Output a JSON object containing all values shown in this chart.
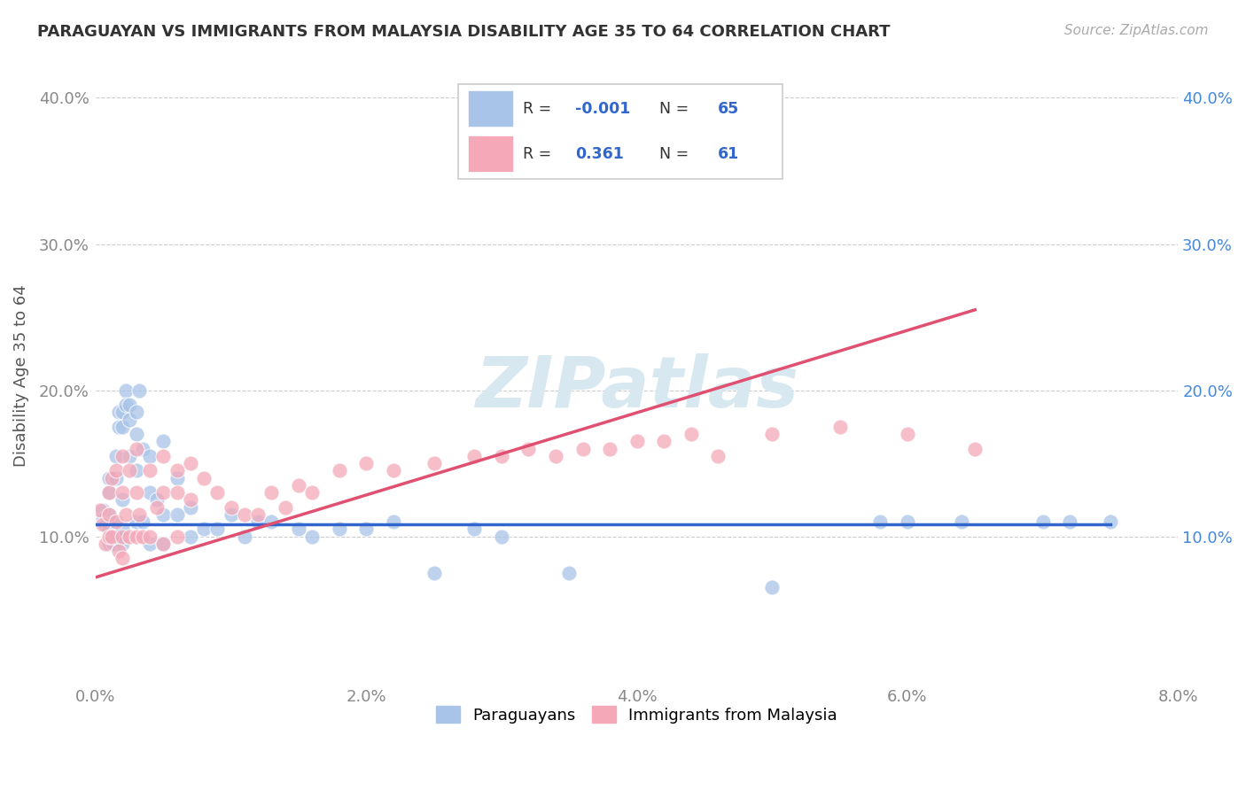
{
  "title": "PARAGUAYAN VS IMMIGRANTS FROM MALAYSIA DISABILITY AGE 35 TO 64 CORRELATION CHART",
  "source": "Source: ZipAtlas.com",
  "ylabel": "Disability Age 35 to 64",
  "blue_color": "#a8c4e8",
  "pink_color": "#f4a8b8",
  "blue_line_color": "#3366cc",
  "pink_line_color": "#e05070",
  "watermark_text": "ZIPatlas",
  "xlim": [
    0.0,
    0.08
  ],
  "ylim": [
    0.0,
    0.42
  ],
  "x_ticks": [
    0.0,
    0.02,
    0.04,
    0.06,
    0.08
  ],
  "x_tick_labels": [
    "0.0%",
    "2.0%",
    "4.0%",
    "6.0%",
    "8.0%"
  ],
  "y_ticks": [
    0.0,
    0.1,
    0.2,
    0.3,
    0.4
  ],
  "y_tick_labels_left": [
    "",
    "10.0%",
    "20.0%",
    "30.0%",
    "40.0%"
  ],
  "y_tick_labels_right": [
    "",
    "10.0%",
    "20.0%",
    "30.0%",
    "40.0%"
  ],
  "legend_r1": "-0.001",
  "legend_n1": "65",
  "legend_r2": "0.361",
  "legend_n2": "61",
  "paraguayan_x": [
    0.0005,
    0.0005,
    0.0007,
    0.001,
    0.001,
    0.001,
    0.001,
    0.001,
    0.0013,
    0.0013,
    0.0015,
    0.0015,
    0.0015,
    0.0017,
    0.0017,
    0.002,
    0.002,
    0.002,
    0.002,
    0.002,
    0.0022,
    0.0022,
    0.0025,
    0.0025,
    0.0025,
    0.003,
    0.003,
    0.003,
    0.003,
    0.0032,
    0.0035,
    0.0035,
    0.004,
    0.004,
    0.004,
    0.0045,
    0.005,
    0.005,
    0.005,
    0.006,
    0.006,
    0.007,
    0.007,
    0.008,
    0.009,
    0.01,
    0.011,
    0.012,
    0.013,
    0.015,
    0.016,
    0.018,
    0.02,
    0.022,
    0.025,
    0.028,
    0.03,
    0.035,
    0.05,
    0.058,
    0.06,
    0.064,
    0.07,
    0.072,
    0.075
  ],
  "paraguayan_y": [
    0.118,
    0.112,
    0.108,
    0.14,
    0.13,
    0.115,
    0.105,
    0.095,
    0.11,
    0.095,
    0.155,
    0.14,
    0.1,
    0.185,
    0.175,
    0.185,
    0.175,
    0.125,
    0.105,
    0.095,
    0.2,
    0.19,
    0.19,
    0.18,
    0.155,
    0.185,
    0.17,
    0.145,
    0.11,
    0.2,
    0.16,
    0.11,
    0.155,
    0.13,
    0.095,
    0.125,
    0.165,
    0.115,
    0.095,
    0.14,
    0.115,
    0.12,
    0.1,
    0.105,
    0.105,
    0.115,
    0.1,
    0.11,
    0.11,
    0.105,
    0.1,
    0.105,
    0.105,
    0.11,
    0.075,
    0.105,
    0.1,
    0.075,
    0.065,
    0.11,
    0.11,
    0.11,
    0.11,
    0.11,
    0.11
  ],
  "malaysia_x": [
    0.0003,
    0.0005,
    0.0007,
    0.001,
    0.001,
    0.001,
    0.0012,
    0.0012,
    0.0015,
    0.0015,
    0.0017,
    0.002,
    0.002,
    0.002,
    0.002,
    0.0022,
    0.0025,
    0.0025,
    0.003,
    0.003,
    0.003,
    0.0032,
    0.0035,
    0.004,
    0.004,
    0.0045,
    0.005,
    0.005,
    0.005,
    0.006,
    0.006,
    0.006,
    0.007,
    0.007,
    0.008,
    0.009,
    0.01,
    0.011,
    0.012,
    0.013,
    0.014,
    0.015,
    0.016,
    0.018,
    0.02,
    0.022,
    0.025,
    0.028,
    0.03,
    0.032,
    0.034,
    0.036,
    0.038,
    0.04,
    0.042,
    0.044,
    0.046,
    0.05,
    0.055,
    0.06,
    0.065
  ],
  "malaysia_y": [
    0.118,
    0.108,
    0.095,
    0.13,
    0.115,
    0.1,
    0.14,
    0.1,
    0.145,
    0.11,
    0.09,
    0.155,
    0.13,
    0.1,
    0.085,
    0.115,
    0.145,
    0.1,
    0.16,
    0.13,
    0.1,
    0.115,
    0.1,
    0.145,
    0.1,
    0.12,
    0.155,
    0.13,
    0.095,
    0.145,
    0.13,
    0.1,
    0.15,
    0.125,
    0.14,
    0.13,
    0.12,
    0.115,
    0.115,
    0.13,
    0.12,
    0.135,
    0.13,
    0.145,
    0.15,
    0.145,
    0.15,
    0.155,
    0.155,
    0.16,
    0.155,
    0.16,
    0.16,
    0.165,
    0.165,
    0.17,
    0.155,
    0.17,
    0.175,
    0.17,
    0.16
  ]
}
